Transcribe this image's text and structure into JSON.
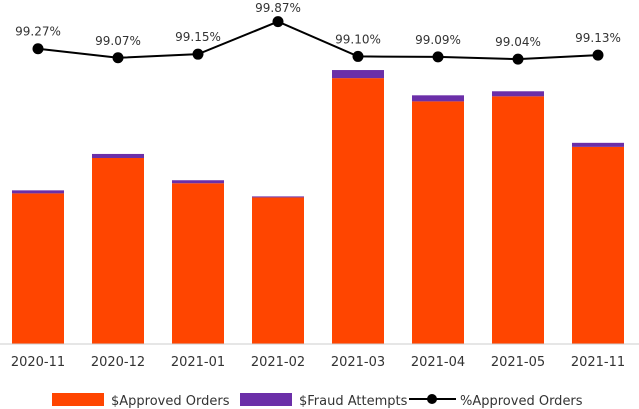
{
  "chart_data": {
    "type": "bar",
    "stacked": true,
    "categories": [
      "2020-11",
      "2020-12",
      "2021-01",
      "2021-02",
      "2021-03",
      "2021-04",
      "2021-05",
      "2021-11"
    ],
    "series": [
      {
        "name": "$Approved Orders",
        "color": "#ff4500",
        "values": [
          149,
          184,
          159,
          145,
          263,
          240,
          245,
          195
        ]
      },
      {
        "name": "$Fraud Attempts",
        "color": "#6b2fa8",
        "values": [
          3,
          4,
          3,
          1,
          8,
          6,
          5,
          4
        ]
      }
    ],
    "line_series": {
      "name": "%Approved Orders",
      "color": "#000000",
      "values": [
        99.27,
        99.07,
        99.15,
        99.87,
        99.1,
        99.09,
        99.04,
        99.13
      ],
      "labels": [
        "99.27%",
        "99.07%",
        "99.15%",
        "99.87%",
        "99.10%",
        "99.09%",
        "99.04%",
        "99.13%"
      ],
      "ylim": [
        98.8,
        99.95
      ]
    },
    "ylim": [
      0,
      275
    ],
    "grid": false,
    "legend_position": "bottom"
  }
}
